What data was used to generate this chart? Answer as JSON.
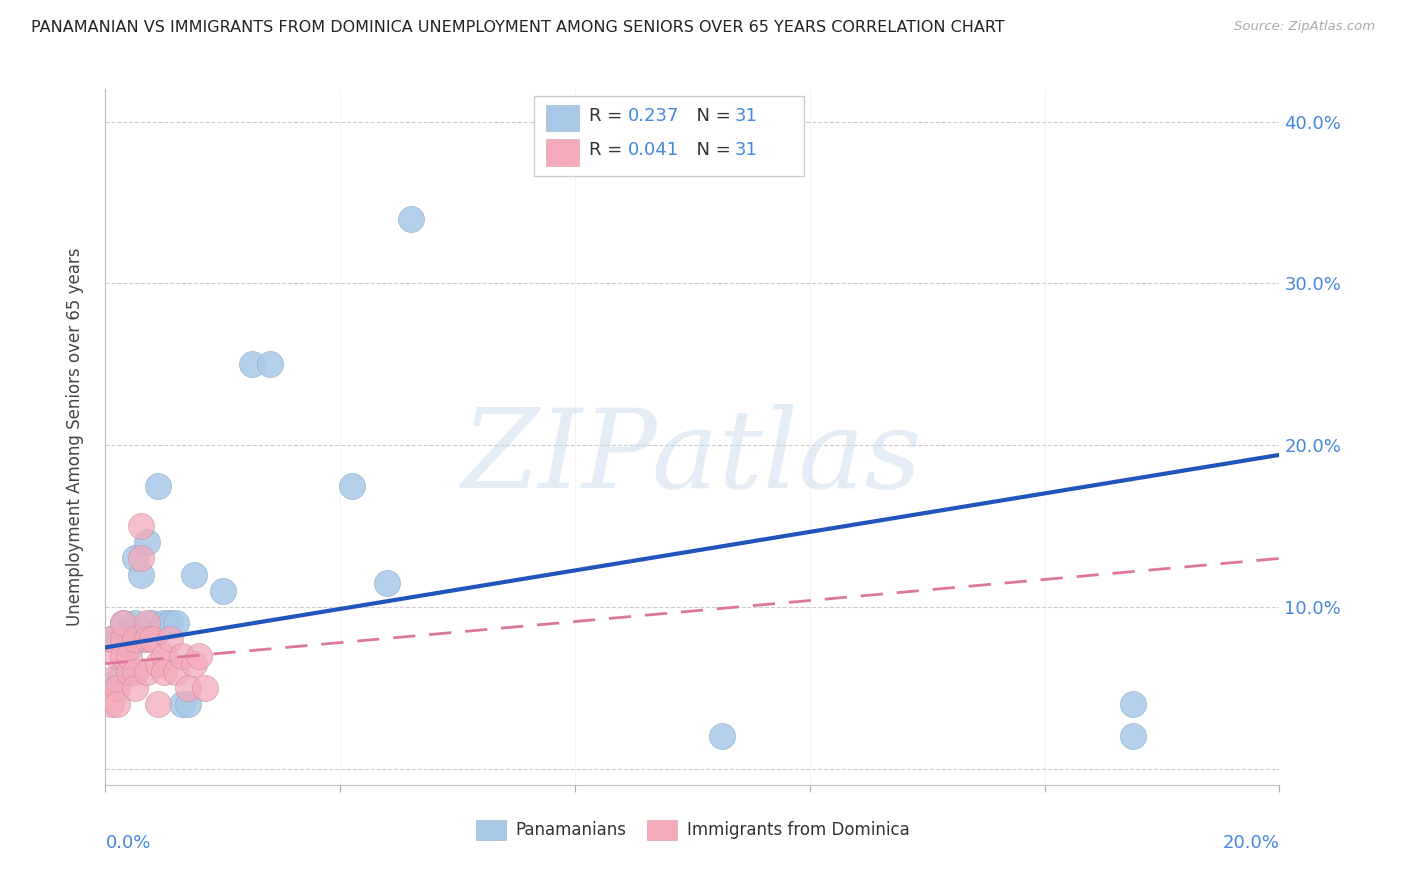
{
  "title": "PANAMANIAN VS IMMIGRANTS FROM DOMINICA UNEMPLOYMENT AMONG SENIORS OVER 65 YEARS CORRELATION CHART",
  "source": "Source: ZipAtlas.com",
  "ylabel": "Unemployment Among Seniors over 65 years",
  "xlim": [
    0.0,
    0.2
  ],
  "ylim": [
    -0.01,
    0.42
  ],
  "yticks": [
    0.0,
    0.1,
    0.2,
    0.3,
    0.4
  ],
  "ytick_labels": [
    "",
    "10.0%",
    "20.0%",
    "30.0%",
    "40.0%"
  ],
  "xticks": [
    0.0,
    0.04,
    0.08,
    0.12,
    0.16,
    0.2
  ],
  "watermark": "ZIPatlas",
  "blue_color": "#A8C8E8",
  "pink_color": "#F4AABB",
  "blue_line_color": "#2255BB",
  "pink_line_color": "#DD7799",
  "axis_label_color": "#4488DD",
  "text_dark": "#333333",
  "blue_scatter_x": [
    0.001,
    0.002,
    0.003,
    0.003,
    0.004,
    0.004,
    0.005,
    0.005,
    0.005,
    0.006,
    0.006,
    0.007,
    0.007,
    0.008,
    0.009,
    0.009,
    0.01,
    0.011,
    0.012,
    0.013,
    0.014,
    0.015,
    0.02,
    0.025,
    0.028,
    0.042,
    0.048,
    0.052,
    0.105,
    0.175,
    0.175
  ],
  "blue_scatter_y": [
    0.08,
    0.055,
    0.06,
    0.09,
    0.085,
    0.075,
    0.09,
    0.13,
    0.085,
    0.12,
    0.08,
    0.14,
    0.085,
    0.09,
    0.085,
    0.175,
    0.09,
    0.09,
    0.09,
    0.04,
    0.04,
    0.12,
    0.11,
    0.25,
    0.25,
    0.175,
    0.115,
    0.34,
    0.02,
    0.02,
    0.04
  ],
  "pink_scatter_x": [
    0.001,
    0.001,
    0.001,
    0.002,
    0.002,
    0.002,
    0.003,
    0.003,
    0.003,
    0.004,
    0.004,
    0.005,
    0.005,
    0.005,
    0.006,
    0.006,
    0.007,
    0.007,
    0.007,
    0.008,
    0.009,
    0.009,
    0.01,
    0.01,
    0.011,
    0.012,
    0.013,
    0.014,
    0.015,
    0.016,
    0.017
  ],
  "pink_scatter_y": [
    0.08,
    0.055,
    0.04,
    0.07,
    0.05,
    0.04,
    0.08,
    0.07,
    0.09,
    0.06,
    0.07,
    0.06,
    0.08,
    0.05,
    0.15,
    0.13,
    0.09,
    0.08,
    0.06,
    0.08,
    0.065,
    0.04,
    0.07,
    0.06,
    0.08,
    0.06,
    0.07,
    0.05,
    0.065,
    0.07,
    0.05
  ],
  "blue_trend_x": [
    0.0,
    0.2
  ],
  "blue_trend_y": [
    0.075,
    0.194
  ],
  "pink_trend_x": [
    0.0,
    0.2
  ],
  "pink_trend_y": [
    0.065,
    0.13
  ],
  "grid_color": "#CCCCCC",
  "background_color": "#FFFFFF"
}
